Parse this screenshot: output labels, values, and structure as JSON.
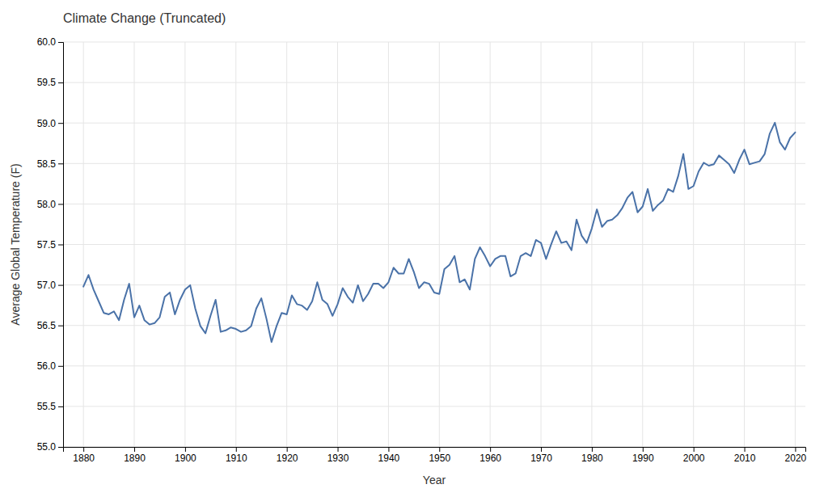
{
  "chart_data": {
    "type": "line",
    "title": "Climate Change (Truncated)",
    "xlabel": "Year",
    "ylabel": "Average Global Temperature (F)",
    "color": "#4a72a8",
    "grid": true,
    "xlim": [
      1876,
      2022
    ],
    "ylim": [
      55.0,
      60.0
    ],
    "xticks": [
      1880,
      1890,
      1900,
      1910,
      1920,
      1930,
      1940,
      1950,
      1960,
      1970,
      1980,
      1990,
      2000,
      2010,
      2020
    ],
    "yticks": [
      {
        "value": 55.0,
        "label": "55.0"
      },
      55.5,
      {
        "value": 56.0,
        "label": "56.0"
      },
      56.5,
      {
        "value": 57.0,
        "label": "57.0"
      },
      57.5,
      {
        "value": 58.0,
        "label": "58.0"
      },
      58.5,
      {
        "value": 59.0,
        "label": "59.0"
      },
      59.5,
      {
        "value": 60.0,
        "label": "60.0"
      }
    ],
    "x": [
      1880,
      1881,
      1882,
      1883,
      1884,
      1885,
      1886,
      1887,
      1888,
      1889,
      1890,
      1891,
      1892,
      1893,
      1894,
      1895,
      1896,
      1897,
      1898,
      1899,
      1900,
      1901,
      1902,
      1903,
      1904,
      1905,
      1906,
      1907,
      1908,
      1909,
      1910,
      1911,
      1912,
      1913,
      1914,
      1915,
      1916,
      1917,
      1918,
      1919,
      1920,
      1921,
      1922,
      1923,
      1924,
      1925,
      1926,
      1927,
      1928,
      1929,
      1930,
      1931,
      1932,
      1933,
      1934,
      1935,
      1936,
      1937,
      1938,
      1939,
      1940,
      1941,
      1942,
      1943,
      1944,
      1945,
      1946,
      1947,
      1948,
      1949,
      1950,
      1951,
      1952,
      1953,
      1954,
      1955,
      1956,
      1957,
      1958,
      1959,
      1960,
      1961,
      1962,
      1963,
      1964,
      1965,
      1966,
      1967,
      1968,
      1969,
      1970,
      1971,
      1972,
      1973,
      1974,
      1975,
      1976,
      1977,
      1978,
      1979,
      1980,
      1981,
      1982,
      1983,
      1984,
      1985,
      1986,
      1987,
      1988,
      1989,
      1990,
      1991,
      1992,
      1993,
      1994,
      1995,
      1996,
      1997,
      1998,
      1999,
      2000,
      2001,
      2002,
      2003,
      2004,
      2005,
      2006,
      2007,
      2008,
      2009,
      2010,
      2011,
      2012,
      2013,
      2014,
      2015,
      2016,
      2017,
      2018,
      2019,
      2020
    ],
    "values": [
      56.979,
      57.123,
      56.943,
      56.799,
      56.655,
      56.637,
      56.673,
      56.565,
      56.817,
      57.015,
      56.601,
      56.745,
      56.565,
      56.511,
      56.529,
      56.601,
      56.853,
      56.907,
      56.637,
      56.817,
      56.943,
      56.997,
      56.709,
      56.493,
      56.403,
      56.619,
      56.817,
      56.421,
      56.439,
      56.475,
      56.457,
      56.421,
      56.439,
      56.493,
      56.709,
      56.835,
      56.583,
      56.295,
      56.493,
      56.655,
      56.637,
      56.871,
      56.763,
      56.745,
      56.691,
      56.799,
      57.033,
      56.817,
      56.763,
      56.619,
      56.763,
      56.961,
      56.853,
      56.781,
      56.997,
      56.799,
      56.889,
      57.015,
      57.015,
      56.961,
      57.033,
      57.213,
      57.141,
      57.141,
      57.321,
      57.159,
      56.961,
      57.033,
      57.015,
      56.907,
      56.889,
      57.195,
      57.249,
      57.357,
      57.033,
      57.069,
      56.943,
      57.321,
      57.465,
      57.357,
      57.231,
      57.321,
      57.357,
      57.357,
      57.105,
      57.141,
      57.357,
      57.393,
      57.357,
      57.555,
      57.519,
      57.321,
      57.501,
      57.663,
      57.519,
      57.537,
      57.429,
      57.807,
      57.609,
      57.519,
      57.699,
      57.933,
      57.717,
      57.789,
      57.807,
      57.861,
      57.951,
      58.077,
      58.149,
      57.897,
      57.969,
      58.185,
      57.915,
      57.987,
      58.041,
      58.185,
      58.149,
      58.347,
      58.617,
      58.185,
      58.221,
      58.401,
      58.509,
      58.473,
      58.491,
      58.599,
      58.545,
      58.491,
      58.383,
      58.545,
      58.671,
      58.491,
      58.509,
      58.527,
      58.617,
      58.869,
      59.004,
      58.761,
      58.671,
      58.815,
      58.884
    ]
  }
}
